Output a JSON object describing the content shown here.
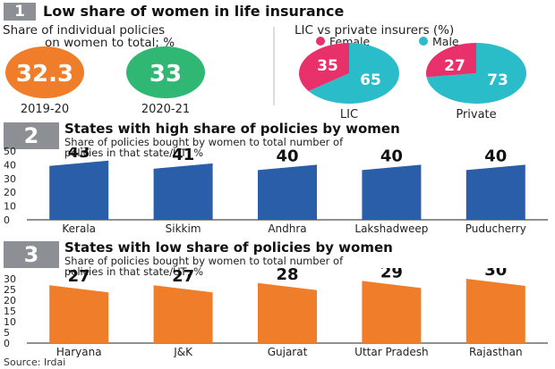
{
  "section1": {
    "number": "1",
    "title": "Low share of women in life insurance",
    "left_subtitle_line1": "Share of individual policies",
    "left_subtitle_line2": "on women to total; %",
    "right_subtitle": "LIC vs private insurers (%)",
    "legend_female": "Female",
    "legend_male": "Male"
  },
  "section2": {
    "number": "2",
    "title": "States with high share of policies by women",
    "subtitle_line1": "Share of policies bought by women to total number of",
    "subtitle_line2": "policies in that state/UT; %"
  },
  "section3": {
    "number": "3",
    "title": "States with low share of policies by women",
    "subtitle_line1": "Share of policies bought by women to total number of",
    "subtitle_line2": "policies in that state/UT; %"
  },
  "source": "Source: Irdai",
  "colors": {
    "orange": "#f07d2a",
    "green": "#2fb773",
    "female": "#e8306a",
    "male": "#2bbcc9",
    "blue_bar": "#2b5ea8",
    "orange_bar": "#f07d2a",
    "gray": "#8c8f93"
  },
  "chart_data": [
    {
      "type": "bubble",
      "categories": [
        "2019-20",
        "2020-21"
      ],
      "values": [
        32.3,
        33
      ],
      "labels": [
        "32.3",
        "33"
      ]
    },
    {
      "type": "pie",
      "categories": [
        "LIC",
        "Private"
      ],
      "series": [
        {
          "name": "Female",
          "values": [
            35,
            27
          ]
        },
        {
          "name": "Male",
          "values": [
            65,
            73
          ]
        }
      ]
    },
    {
      "type": "bar",
      "categories": [
        "Kerala",
        "Sikkim",
        "Andhra",
        "Lakshadweep",
        "Puducherry"
      ],
      "values": [
        43,
        41,
        40,
        40,
        40
      ],
      "ylim": [
        0,
        50
      ],
      "yticks": [
        0,
        10,
        20,
        30,
        40,
        50
      ],
      "grid": false
    },
    {
      "type": "bar",
      "categories": [
        "Haryana",
        "J&K",
        "Gujarat",
        "Uttar Pradesh",
        "Rajasthan"
      ],
      "values": [
        27,
        27,
        28,
        29,
        30
      ],
      "ylim": [
        0,
        30
      ],
      "yticks": [
        0,
        5,
        10,
        15,
        20,
        25,
        30
      ],
      "grid": false
    }
  ]
}
